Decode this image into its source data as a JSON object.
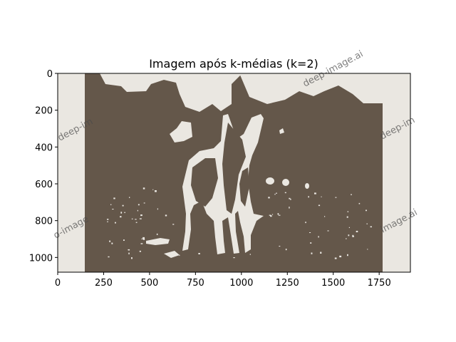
{
  "chart_data": {
    "type": "image",
    "title": "Imagem após k-médias (k=2)",
    "xlabel": "",
    "ylabel": "",
    "xlim": [
      0,
      1920
    ],
    "ylim": [
      1080,
      0
    ],
    "x_ticks": [
      0,
      250,
      500,
      750,
      1000,
      1250,
      1500,
      1750
    ],
    "y_ticks": [
      0,
      200,
      400,
      600,
      800,
      1000
    ],
    "x_tick_labels": [
      "0",
      "250",
      "500",
      "750",
      "1000",
      "1250",
      "1500",
      "1750"
    ],
    "y_tick_labels": [
      "0",
      "200",
      "400",
      "600",
      "800",
      "1000"
    ],
    "k": 2,
    "cluster_colors": [
      "#64574a",
      "#eae7e1"
    ],
    "watermark_text": [
      "deep-im",
      "deep-image.ai",
      "o-image",
      "image.ai"
    ]
  }
}
